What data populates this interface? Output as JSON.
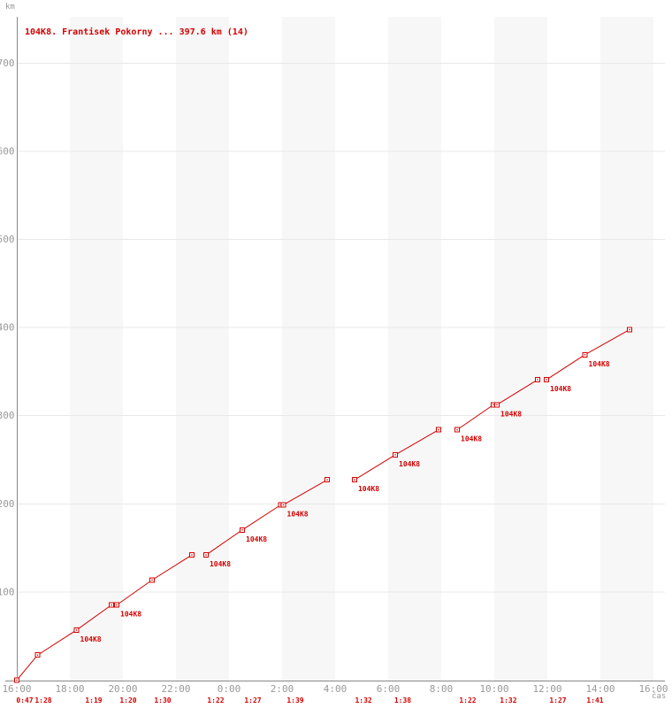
{
  "header": {
    "title": "104K8. Frantisek Pokorny ... 397.6 km (14)",
    "y_unit_label": "km",
    "x_unit_label": "čas"
  },
  "chart_data": {
    "type": "line",
    "title": "104K8. Frantisek Pokorny ... 397.6 km (14)",
    "series_name": "104K8",
    "total_km": 397.6,
    "lap_count": 14,
    "xlabel": "čas",
    "ylabel": "km",
    "x_tick_hours": [
      0,
      2,
      4,
      6,
      8,
      10,
      12,
      14,
      16,
      18,
      20,
      22,
      24
    ],
    "x_tick_labels": [
      "16:00",
      "18:00",
      "20:00",
      "22:00",
      "0:00",
      "2:00",
      "4:00",
      "6:00",
      "8:00",
      "10:00",
      "12:00",
      "14:00",
      "16:00"
    ],
    "y_ticks": [
      100,
      200,
      300,
      400,
      500,
      600,
      700
    ],
    "ylim": [
      0,
      753
    ],
    "x_span_hours": 24,
    "grid": "horizontal-only",
    "shaded_band_hours": [
      [
        2,
        4
      ],
      [
        6,
        8
      ],
      [
        10,
        12
      ],
      [
        14,
        16
      ],
      [
        18,
        20
      ],
      [
        22,
        24
      ]
    ],
    "laps": [
      {
        "n": 1,
        "time": "0:47",
        "label_h": 0.3
      },
      {
        "n": 2,
        "time": "1:28",
        "label_h": 1.0
      },
      {
        "n": 3,
        "time": "1:19",
        "label_h": 2.9
      },
      {
        "n": 4,
        "time": "1:20",
        "label_h": 4.2
      },
      {
        "n": 5,
        "time": "1:30",
        "label_h": 5.5
      },
      {
        "n": 6,
        "time": "1:22",
        "label_h": 7.5
      },
      {
        "n": 7,
        "time": "1:27",
        "label_h": 8.9
      },
      {
        "n": 8,
        "time": "1:39",
        "label_h": 10.5
      },
      {
        "n": 9,
        "time": "1:32",
        "label_h": 13.07
      },
      {
        "n": 10,
        "time": "1:38",
        "label_h": 14.55
      },
      {
        "n": 11,
        "time": "1:22",
        "label_h": 17.0
      },
      {
        "n": 12,
        "time": "1:32",
        "label_h": 18.53
      },
      {
        "n": 13,
        "time": "1:27",
        "label_h": 20.4
      },
      {
        "n": 14,
        "time": "1:41",
        "label_h": 21.8
      }
    ],
    "segments": [
      [
        [
          0.0,
          0.0
        ],
        [
          0.783,
          28.4
        ],
        [
          2.25,
          56.8
        ],
        [
          3.567,
          85.2
        ]
      ],
      [
        [
          3.767,
          85.2
        ],
        [
          5.1,
          113.6
        ],
        [
          6.6,
          142.0
        ]
      ],
      [
        [
          7.133,
          142.0
        ],
        [
          8.5,
          170.4
        ],
        [
          9.95,
          198.8
        ]
      ],
      [
        [
          10.05,
          198.8
        ],
        [
          11.7,
          227.2
        ]
      ],
      [
        [
          12.733,
          227.2
        ],
        [
          14.267,
          255.6
        ],
        [
          15.9,
          284.0
        ]
      ],
      [
        [
          16.6,
          284.0
        ],
        [
          17.967,
          312.4
        ]
      ],
      [
        [
          18.1,
          312.4
        ],
        [
          19.633,
          340.8
        ]
      ],
      [
        [
          19.967,
          340.8
        ],
        [
          21.417,
          369.2
        ],
        [
          23.1,
          397.6
        ]
      ]
    ],
    "points": [
      {
        "h": 0.0,
        "km": 0.0,
        "labeled": false
      },
      {
        "h": 0.783,
        "km": 28.4,
        "labeled": false
      },
      {
        "h": 2.25,
        "km": 56.8,
        "labeled": true
      },
      {
        "h": 3.567,
        "km": 85.2,
        "labeled": false
      },
      {
        "h": 3.767,
        "km": 85.2,
        "labeled": true
      },
      {
        "h": 5.1,
        "km": 113.6,
        "labeled": false
      },
      {
        "h": 6.6,
        "km": 142.0,
        "labeled": false
      },
      {
        "h": 7.133,
        "km": 142.0,
        "labeled": true
      },
      {
        "h": 8.5,
        "km": 170.4,
        "labeled": true
      },
      {
        "h": 9.95,
        "km": 198.8,
        "labeled": false
      },
      {
        "h": 10.05,
        "km": 198.8,
        "labeled": true
      },
      {
        "h": 11.7,
        "km": 227.2,
        "labeled": false
      },
      {
        "h": 12.733,
        "km": 227.2,
        "labeled": true
      },
      {
        "h": 14.267,
        "km": 255.6,
        "labeled": true
      },
      {
        "h": 15.9,
        "km": 284.0,
        "labeled": false
      },
      {
        "h": 16.6,
        "km": 284.0,
        "labeled": true
      },
      {
        "h": 17.967,
        "km": 312.4,
        "labeled": false
      },
      {
        "h": 18.1,
        "km": 312.4,
        "labeled": true
      },
      {
        "h": 19.633,
        "km": 340.8,
        "labeled": false
      },
      {
        "h": 19.967,
        "km": 340.8,
        "labeled": true
      },
      {
        "h": 21.417,
        "km": 369.2,
        "labeled": true
      },
      {
        "h": 23.1,
        "km": 397.6,
        "labeled": false
      }
    ],
    "colors": {
      "red": "#d40000",
      "label_gray": "#999999",
      "axis_gray": "#888888",
      "grid": "#e8e8e8",
      "band": "#f7f7f7",
      "marker_fill": "#ffffff"
    }
  }
}
